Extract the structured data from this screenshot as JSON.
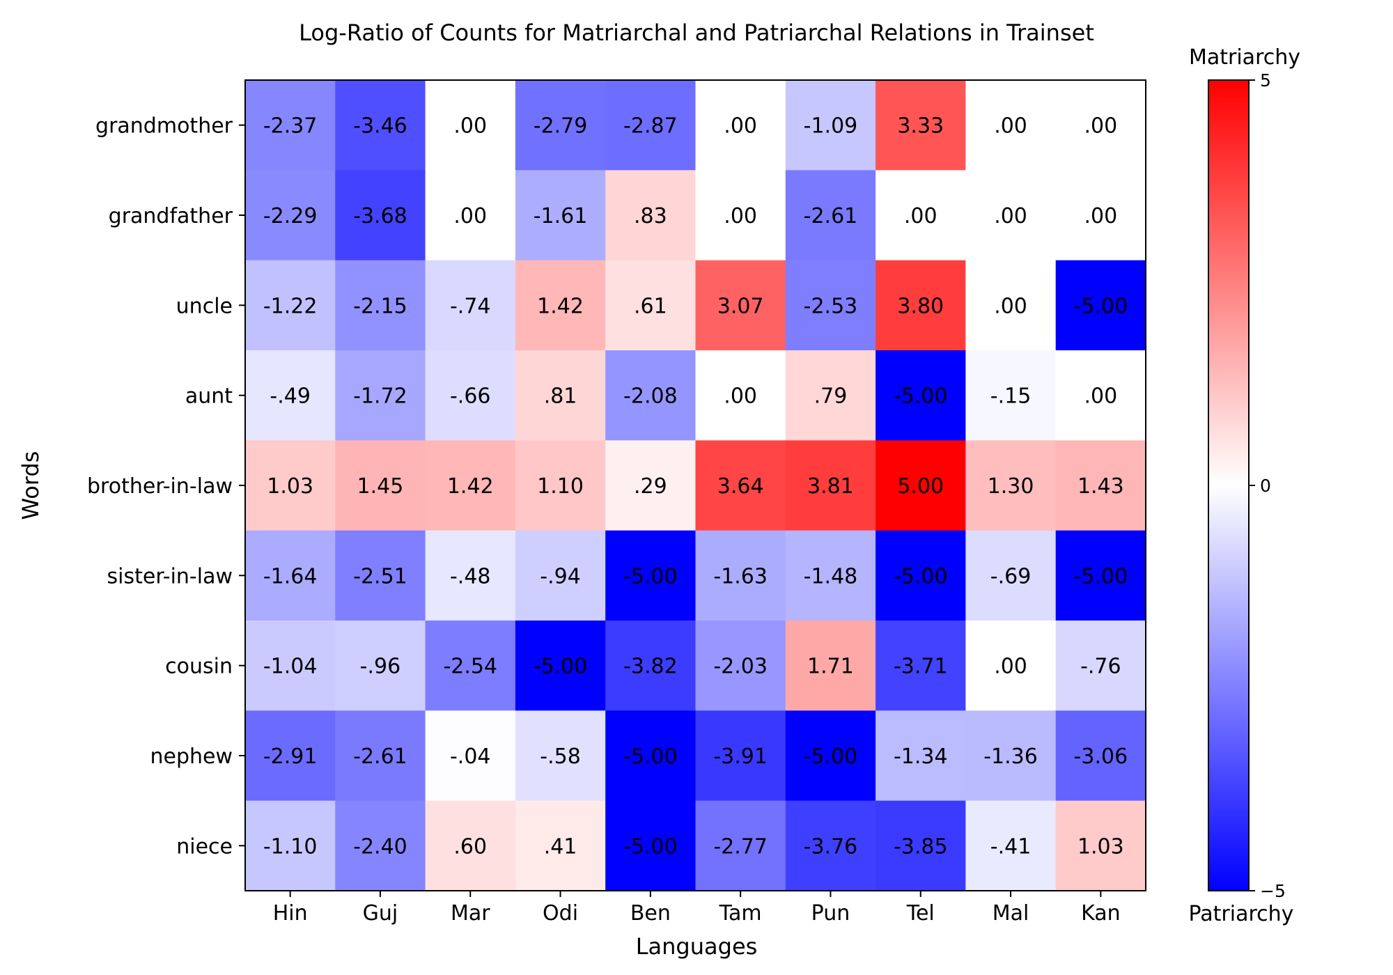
{
  "chart_data": {
    "type": "heatmap",
    "title": "Log-Ratio of Counts for Matriarchal and Patriarchal Relations in Trainset",
    "xlabel": "Languages",
    "ylabel": "Words",
    "x_categories": [
      "Hin",
      "Guj",
      "Mar",
      "Odi",
      "Ben",
      "Tam",
      "Pun",
      "Tel",
      "Mal",
      "Kan"
    ],
    "y_categories": [
      "grandmother",
      "grandfather",
      "uncle",
      "aunt",
      "brother-in-law",
      "sister-in-law",
      "cousin",
      "nephew",
      "niece"
    ],
    "values": [
      [
        -2.37,
        -3.46,
        0.0,
        -2.79,
        -2.87,
        0.0,
        -1.09,
        3.33,
        0.0,
        0.0
      ],
      [
        -2.29,
        -3.68,
        0.0,
        -1.61,
        0.83,
        0.0,
        -2.61,
        0.0,
        0.0,
        0.0
      ],
      [
        -1.22,
        -2.15,
        -0.74,
        1.42,
        0.61,
        3.07,
        -2.53,
        3.8,
        0.0,
        -5.0
      ],
      [
        -0.49,
        -1.72,
        -0.66,
        0.81,
        -2.08,
        0.0,
        0.79,
        -5.0,
        -0.15,
        0.0
      ],
      [
        1.03,
        1.45,
        1.42,
        1.1,
        0.29,
        3.64,
        3.81,
        5.0,
        1.3,
        1.43
      ],
      [
        -1.64,
        -2.51,
        -0.48,
        -0.94,
        -5.0,
        -1.63,
        -1.48,
        -5.0,
        -0.69,
        -5.0
      ],
      [
        -1.04,
        -0.96,
        -2.54,
        -5.0,
        -3.82,
        -2.03,
        1.71,
        -3.71,
        0.0,
        -0.76
      ],
      [
        -2.91,
        -2.61,
        -0.04,
        -0.58,
        -5.0,
        -3.91,
        -5.0,
        -1.34,
        -1.36,
        -3.06
      ],
      [
        -1.1,
        -2.4,
        0.6,
        0.41,
        -5.0,
        -2.77,
        -3.76,
        -3.85,
        -0.41,
        1.03
      ]
    ],
    "colormap": "bwr",
    "colors": {
      "low": "#0000ff",
      "mid": "#ffffff",
      "high": "#ff0000"
    },
    "vmin": -5,
    "vmax": 5,
    "colorbar": {
      "top_label": "Matriarchy",
      "bottom_label": "Patriarchy",
      "ticks": [
        5,
        0,
        -5
      ],
      "tick_labels": [
        "5",
        "0",
        "−5"
      ]
    },
    "grid": false,
    "legend": "colorbar-right"
  }
}
